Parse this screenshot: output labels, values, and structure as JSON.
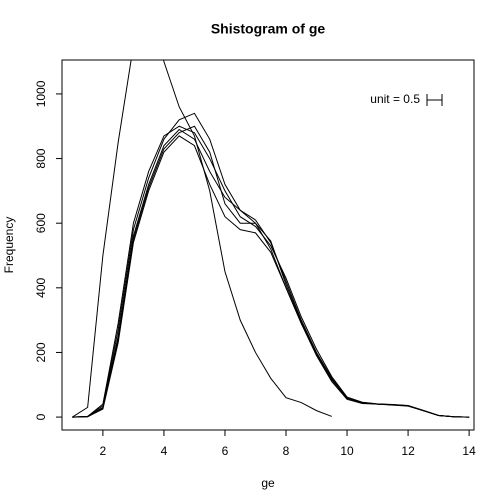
{
  "chart_data": {
    "type": "line",
    "title": "Shistogram of ge",
    "x_label": "ge",
    "y_label": "Frequency",
    "annotation": "unit = 0.5",
    "x": [
      1,
      1.5,
      2,
      2.5,
      3,
      3.5,
      4,
      4.5,
      5,
      5.5,
      6,
      6.5,
      7,
      7.5,
      8,
      8.5,
      9,
      9.5,
      10,
      10.5,
      11,
      11.5,
      12,
      12.5,
      13,
      13.5,
      14
    ],
    "series": [
      {
        "color": "#333333",
        "values": [
          0,
          30,
          500,
          850,
          1150,
          1300,
          1100,
          960,
          870,
          700,
          450,
          300,
          200,
          120,
          60,
          45,
          20,
          2,
          null,
          null,
          null,
          null,
          null,
          null,
          null,
          null,
          null
        ]
      },
      {
        "color": "#000000",
        "values": [
          0,
          2,
          30,
          250,
          560,
          720,
          840,
          890,
          860,
          760,
          680,
          640,
          610,
          540,
          420,
          300,
          200,
          120,
          60,
          45,
          40,
          38,
          35,
          20,
          5,
          1,
          0
        ]
      },
      {
        "color": "#000000",
        "values": [
          0,
          2,
          35,
          270,
          580,
          740,
          860,
          920,
          940,
          860,
          720,
          640,
          600,
          520,
          400,
          290,
          190,
          110,
          55,
          42,
          40,
          37,
          34,
          20,
          5,
          1,
          0
        ]
      },
      {
        "color": "#000000",
        "values": [
          0,
          1,
          25,
          230,
          540,
          700,
          820,
          870,
          840,
          720,
          620,
          580,
          570,
          510,
          400,
          290,
          195,
          115,
          58,
          44,
          40,
          38,
          35,
          20,
          5,
          1,
          0
        ]
      },
      {
        "color": "#000000",
        "values": [
          0,
          2,
          40,
          290,
          600,
          760,
          870,
          900,
          880,
          800,
          700,
          620,
          590,
          530,
          430,
          310,
          210,
          125,
          62,
          46,
          41,
          39,
          36,
          21,
          5,
          1,
          0
        ]
      },
      {
        "color": "#000000",
        "values": [
          0,
          1,
          28,
          240,
          550,
          710,
          830,
          880,
          900,
          820,
          660,
          600,
          600,
          545,
          410,
          295,
          198,
          118,
          59,
          45,
          40,
          38,
          35,
          20,
          5,
          1,
          0
        ]
      }
    ],
    "xlim": [
      0.66,
      14.16
    ],
    "ylim": [
      -40,
      1105
    ],
    "xticks": [
      2,
      4,
      6,
      8,
      10,
      12,
      14
    ],
    "yticks": [
      0,
      200,
      400,
      600,
      800,
      1000
    ]
  }
}
